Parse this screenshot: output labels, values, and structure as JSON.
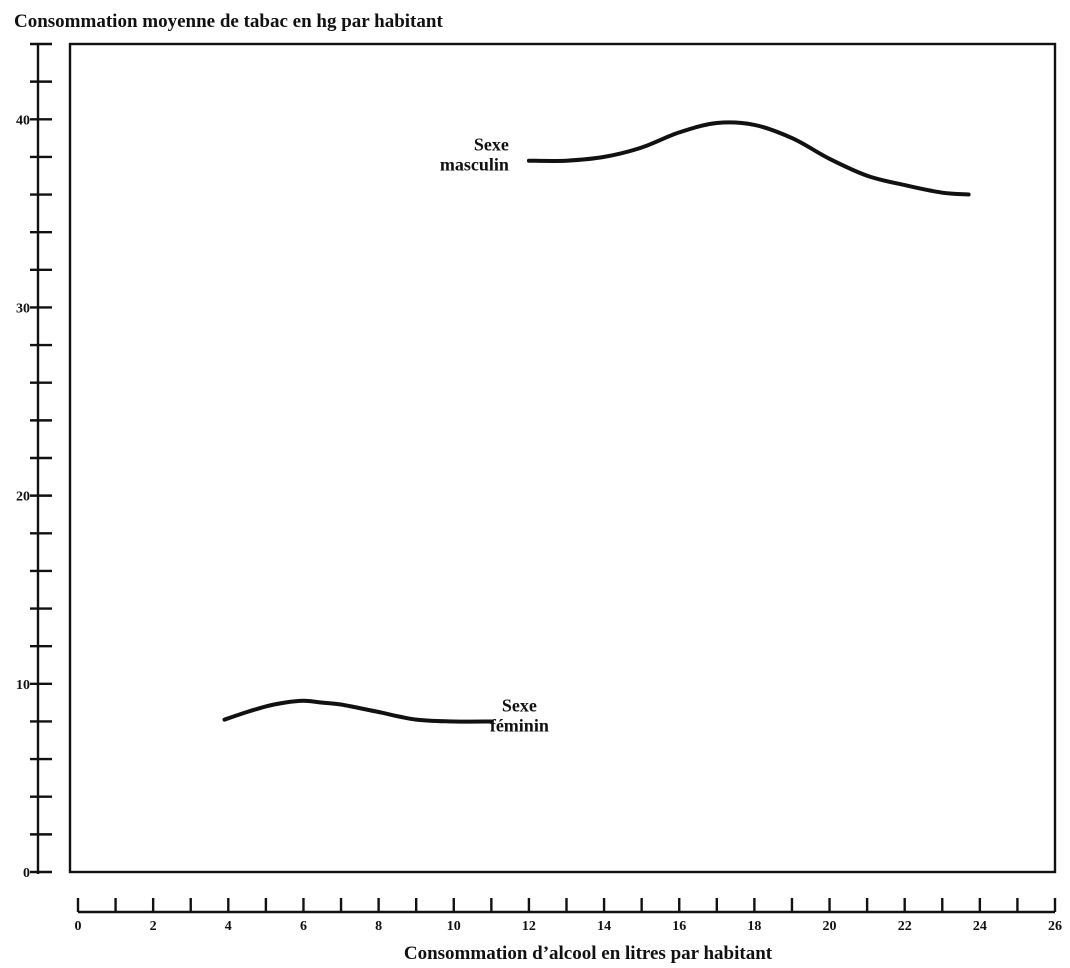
{
  "chart_data": {
    "type": "line",
    "title": "Consommation moyenne de tabac en hg par habitant",
    "xlabel": "Consommation d’alcool en litres par habitant",
    "ylabel": "",
    "xlim": [
      0,
      26
    ],
    "ylim": [
      0,
      44
    ],
    "x_ticks": [
      0,
      2,
      4,
      6,
      8,
      10,
      12,
      14,
      16,
      18,
      20,
      22,
      24,
      26
    ],
    "y_ticks": [
      0,
      10,
      20,
      30,
      40
    ],
    "grid": false,
    "legend": "none",
    "series": [
      {
        "name": "Sexe masculin",
        "x": [
          12,
          13,
          14,
          15,
          16,
          17,
          18,
          19,
          20,
          21,
          22,
          23,
          23.7
        ],
        "y": [
          37.8,
          37.8,
          38.0,
          38.5,
          39.3,
          39.8,
          39.7,
          39.0,
          37.9,
          37.0,
          36.5,
          36.1,
          36.0
        ]
      },
      {
        "name": "Sexe féminin",
        "x": [
          3.9,
          4.5,
          5,
          5.5,
          6,
          6.5,
          7,
          8,
          9,
          10,
          11
        ],
        "y": [
          8.1,
          8.5,
          8.8,
          9.0,
          9.1,
          9.0,
          8.9,
          8.5,
          8.1,
          8.0,
          8.0
        ]
      }
    ],
    "annotations": [
      {
        "series": 0,
        "lines": [
          "Sexe",
          "masculin"
        ],
        "anchor_x": 12,
        "anchor_y": 37.8
      },
      {
        "series": 1,
        "lines": [
          "Sexe",
          "féminin"
        ],
        "anchor_x": 11,
        "anchor_y": 8.0
      }
    ]
  }
}
